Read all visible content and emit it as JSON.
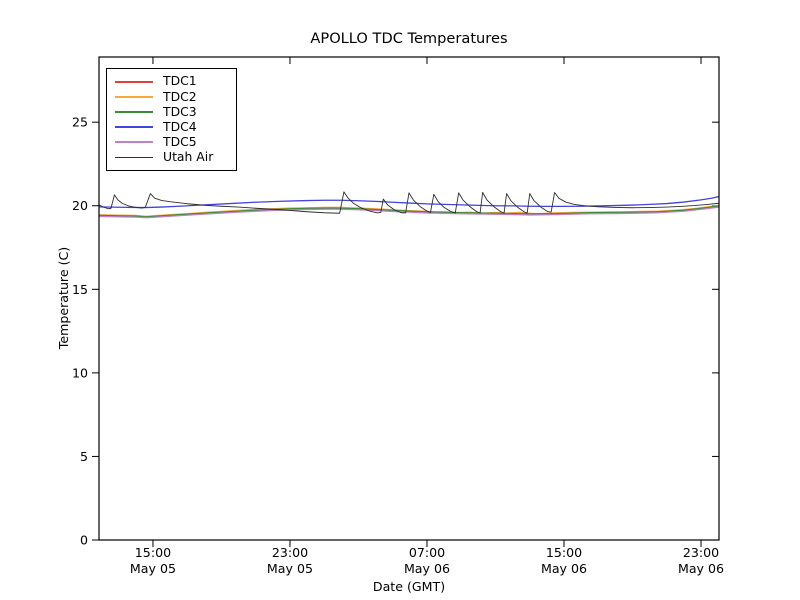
{
  "chart_data": {
    "type": "line",
    "title": "APOLLO TDC Temperatures",
    "xlabel": "Date (GMT)",
    "ylabel": "Temperature (C)",
    "grid": false,
    "legend_position": "upper-left",
    "x_unit": "hours since May 05 00:00 GMT",
    "xlim": [
      11.85,
      48.05
    ],
    "ylim": [
      0,
      28.9
    ],
    "y_ticks": [
      0,
      5,
      10,
      15,
      20,
      25
    ],
    "x_ticks": [
      {
        "t": 15,
        "time": "15:00",
        "date": "May 05"
      },
      {
        "t": 23,
        "time": "23:00",
        "date": "May 05"
      },
      {
        "t": 31,
        "time": "07:00",
        "date": "May 06"
      },
      {
        "t": 39,
        "time": "15:00",
        "date": "May 06"
      },
      {
        "t": 47,
        "time": "23:00",
        "date": "May 06"
      }
    ],
    "axis_color": "#000000",
    "series": [
      {
        "name": "TDC1",
        "color": "#e0413c",
        "width": 1.3,
        "points": [
          [
            11.85,
            19.39
          ],
          [
            14,
            19.35
          ],
          [
            14.6,
            19.31
          ],
          [
            16,
            19.4
          ],
          [
            18,
            19.53
          ],
          [
            20,
            19.65
          ],
          [
            22,
            19.75
          ],
          [
            24,
            19.81
          ],
          [
            25.5,
            19.83
          ],
          [
            27,
            19.79
          ],
          [
            29,
            19.69
          ],
          [
            31,
            19.6
          ],
          [
            33,
            19.55
          ],
          [
            35,
            19.52
          ],
          [
            37,
            19.48
          ],
          [
            38.5,
            19.5
          ],
          [
            40.5,
            19.55
          ],
          [
            42.5,
            19.57
          ],
          [
            44.5,
            19.61
          ],
          [
            46,
            19.7
          ],
          [
            47.3,
            19.85
          ],
          [
            48.05,
            19.95
          ]
        ]
      },
      {
        "name": "TDC2",
        "color": "#f7a838",
        "width": 1.3,
        "points": [
          [
            11.85,
            19.46
          ],
          [
            13,
            19.44
          ],
          [
            14,
            19.42
          ],
          [
            14.6,
            19.37
          ],
          [
            15,
            19.4
          ],
          [
            16,
            19.47
          ],
          [
            17,
            19.53
          ],
          [
            18,
            19.6
          ],
          [
            19,
            19.66
          ],
          [
            20,
            19.72
          ],
          [
            21,
            19.78
          ],
          [
            22,
            19.82
          ],
          [
            23,
            19.86
          ],
          [
            24,
            19.88
          ],
          [
            25,
            19.9
          ],
          [
            26,
            19.9
          ],
          [
            26.5,
            19.88
          ],
          [
            27,
            19.86
          ],
          [
            28,
            19.82
          ],
          [
            29,
            19.76
          ],
          [
            30,
            19.71
          ],
          [
            31,
            19.67
          ],
          [
            31.5,
            19.63
          ],
          [
            32,
            19.64
          ],
          [
            32.8,
            19.6
          ],
          [
            33.5,
            19.62
          ],
          [
            34.3,
            19.56
          ],
          [
            35,
            19.6
          ],
          [
            35.7,
            19.56
          ],
          [
            36.4,
            19.6
          ],
          [
            37,
            19.55
          ],
          [
            37.5,
            19.52
          ],
          [
            38,
            19.55
          ],
          [
            38.6,
            19.58
          ],
          [
            39.5,
            19.6
          ],
          [
            40.5,
            19.62
          ],
          [
            41.5,
            19.63
          ],
          [
            42.5,
            19.64
          ],
          [
            43.5,
            19.66
          ],
          [
            44.5,
            19.68
          ],
          [
            45.5,
            19.74
          ],
          [
            46.5,
            19.82
          ],
          [
            47.3,
            19.92
          ],
          [
            48.05,
            20.02
          ]
        ]
      },
      {
        "name": "TDC3",
        "color": "#3a8a3a",
        "width": 1.3,
        "points": [
          [
            11.85,
            19.42
          ],
          [
            14,
            19.38
          ],
          [
            14.6,
            19.33
          ],
          [
            16,
            19.43
          ],
          [
            18,
            19.56
          ],
          [
            20,
            19.68
          ],
          [
            22,
            19.78
          ],
          [
            24,
            19.84
          ],
          [
            25.5,
            19.86
          ],
          [
            27,
            19.82
          ],
          [
            29,
            19.72
          ],
          [
            31,
            19.63
          ],
          [
            33,
            19.58
          ],
          [
            35,
            19.55
          ],
          [
            37,
            19.51
          ],
          [
            38.5,
            19.53
          ],
          [
            40.5,
            19.58
          ],
          [
            42.5,
            19.6
          ],
          [
            44.5,
            19.64
          ],
          [
            46,
            19.73
          ],
          [
            47.3,
            19.88
          ],
          [
            48.05,
            19.98
          ]
        ]
      },
      {
        "name": "TDC4",
        "color": "#4343dd",
        "width": 1.3,
        "points": [
          [
            11.85,
            19.93
          ],
          [
            13,
            19.91
          ],
          [
            14.5,
            19.89
          ],
          [
            15.5,
            19.92
          ],
          [
            16.5,
            19.97
          ],
          [
            18,
            20.05
          ],
          [
            19.5,
            20.13
          ],
          [
            21,
            20.21
          ],
          [
            22.5,
            20.27
          ],
          [
            24,
            20.31
          ],
          [
            25,
            20.33
          ],
          [
            26,
            20.33
          ],
          [
            27,
            20.3
          ],
          [
            28,
            20.26
          ],
          [
            29,
            20.21
          ],
          [
            30,
            20.16
          ],
          [
            31,
            20.11
          ],
          [
            32,
            20.08
          ],
          [
            33,
            20.05
          ],
          [
            34,
            20.02
          ],
          [
            35,
            20.0
          ],
          [
            36,
            19.99
          ],
          [
            37,
            19.97
          ],
          [
            38,
            19.96
          ],
          [
            39,
            19.96
          ],
          [
            40,
            19.97
          ],
          [
            41,
            19.99
          ],
          [
            42,
            20.01
          ],
          [
            43,
            20.04
          ],
          [
            44,
            20.08
          ],
          [
            45,
            20.13
          ],
          [
            46,
            20.22
          ],
          [
            47,
            20.35
          ],
          [
            47.6,
            20.45
          ],
          [
            48.05,
            20.55
          ]
        ]
      },
      {
        "name": "TDC5",
        "color": "#c07fc9",
        "width": 1.3,
        "points": [
          [
            11.85,
            19.36
          ],
          [
            14,
            19.32
          ],
          [
            14.6,
            19.28
          ],
          [
            16,
            19.37
          ],
          [
            18,
            19.5
          ],
          [
            20,
            19.62
          ],
          [
            22,
            19.72
          ],
          [
            24,
            19.78
          ],
          [
            25.5,
            19.8
          ],
          [
            27,
            19.76
          ],
          [
            29,
            19.66
          ],
          [
            31,
            19.57
          ],
          [
            33,
            19.52
          ],
          [
            35,
            19.49
          ],
          [
            37,
            19.45
          ],
          [
            38.5,
            19.47
          ],
          [
            40.5,
            19.52
          ],
          [
            42.5,
            19.54
          ],
          [
            44.5,
            19.58
          ],
          [
            46,
            19.67
          ],
          [
            47.3,
            19.82
          ],
          [
            48.05,
            19.92
          ]
        ]
      },
      {
        "name": "Utah Air",
        "color": "#2e2e2e",
        "width": 0.9,
        "points": [
          [
            11.85,
            20.05
          ],
          [
            12.1,
            19.92
          ],
          [
            12.4,
            19.82
          ],
          [
            12.55,
            19.85
          ],
          [
            12.75,
            20.65
          ],
          [
            12.95,
            20.35
          ],
          [
            13.2,
            20.15
          ],
          [
            13.6,
            19.98
          ],
          [
            14.0,
            19.9
          ],
          [
            14.35,
            19.86
          ],
          [
            14.55,
            19.9
          ],
          [
            14.85,
            20.73
          ],
          [
            15.1,
            20.45
          ],
          [
            15.5,
            20.32
          ],
          [
            16,
            20.24
          ],
          [
            17,
            20.12
          ],
          [
            18,
            20.03
          ],
          [
            19,
            19.97
          ],
          [
            20,
            19.92
          ],
          [
            21,
            19.85
          ],
          [
            22,
            19.79
          ],
          [
            23,
            19.72
          ],
          [
            24,
            19.64
          ],
          [
            25,
            19.58
          ],
          [
            25.9,
            19.55
          ],
          [
            26.15,
            20.83
          ],
          [
            26.4,
            20.45
          ],
          [
            26.7,
            20.15
          ],
          [
            27.1,
            19.9
          ],
          [
            27.6,
            19.7
          ],
          [
            28.1,
            19.57
          ],
          [
            28.3,
            19.6
          ],
          [
            28.45,
            20.4
          ],
          [
            28.7,
            20.05
          ],
          [
            29.1,
            19.75
          ],
          [
            29.5,
            19.58
          ],
          [
            29.75,
            19.57
          ],
          [
            29.95,
            20.77
          ],
          [
            30.2,
            20.35
          ],
          [
            30.6,
            19.95
          ],
          [
            31.0,
            19.68
          ],
          [
            31.2,
            19.58
          ],
          [
            31.4,
            20.68
          ],
          [
            31.65,
            20.25
          ],
          [
            32.0,
            19.9
          ],
          [
            32.4,
            19.65
          ],
          [
            32.65,
            19.57
          ],
          [
            32.85,
            20.77
          ],
          [
            33.1,
            20.35
          ],
          [
            33.5,
            19.95
          ],
          [
            33.9,
            19.65
          ],
          [
            34.1,
            19.56
          ],
          [
            34.25,
            20.8
          ],
          [
            34.5,
            20.35
          ],
          [
            34.9,
            19.95
          ],
          [
            35.3,
            19.65
          ],
          [
            35.5,
            19.56
          ],
          [
            35.65,
            20.73
          ],
          [
            35.9,
            20.3
          ],
          [
            36.3,
            19.9
          ],
          [
            36.7,
            19.62
          ],
          [
            36.85,
            19.56
          ],
          [
            37.0,
            20.73
          ],
          [
            37.25,
            20.3
          ],
          [
            37.65,
            19.92
          ],
          [
            38.05,
            19.65
          ],
          [
            38.25,
            19.62
          ],
          [
            38.45,
            20.79
          ],
          [
            38.7,
            20.45
          ],
          [
            39.1,
            20.22
          ],
          [
            39.6,
            20.08
          ],
          [
            40.2,
            20.0
          ],
          [
            41,
            19.94
          ],
          [
            42,
            19.9
          ],
          [
            43,
            19.88
          ],
          [
            44,
            19.89
          ],
          [
            45,
            19.92
          ],
          [
            45.8,
            19.96
          ],
          [
            46.6,
            20.01
          ],
          [
            47.3,
            20.07
          ],
          [
            48.05,
            20.15
          ]
        ]
      }
    ]
  }
}
